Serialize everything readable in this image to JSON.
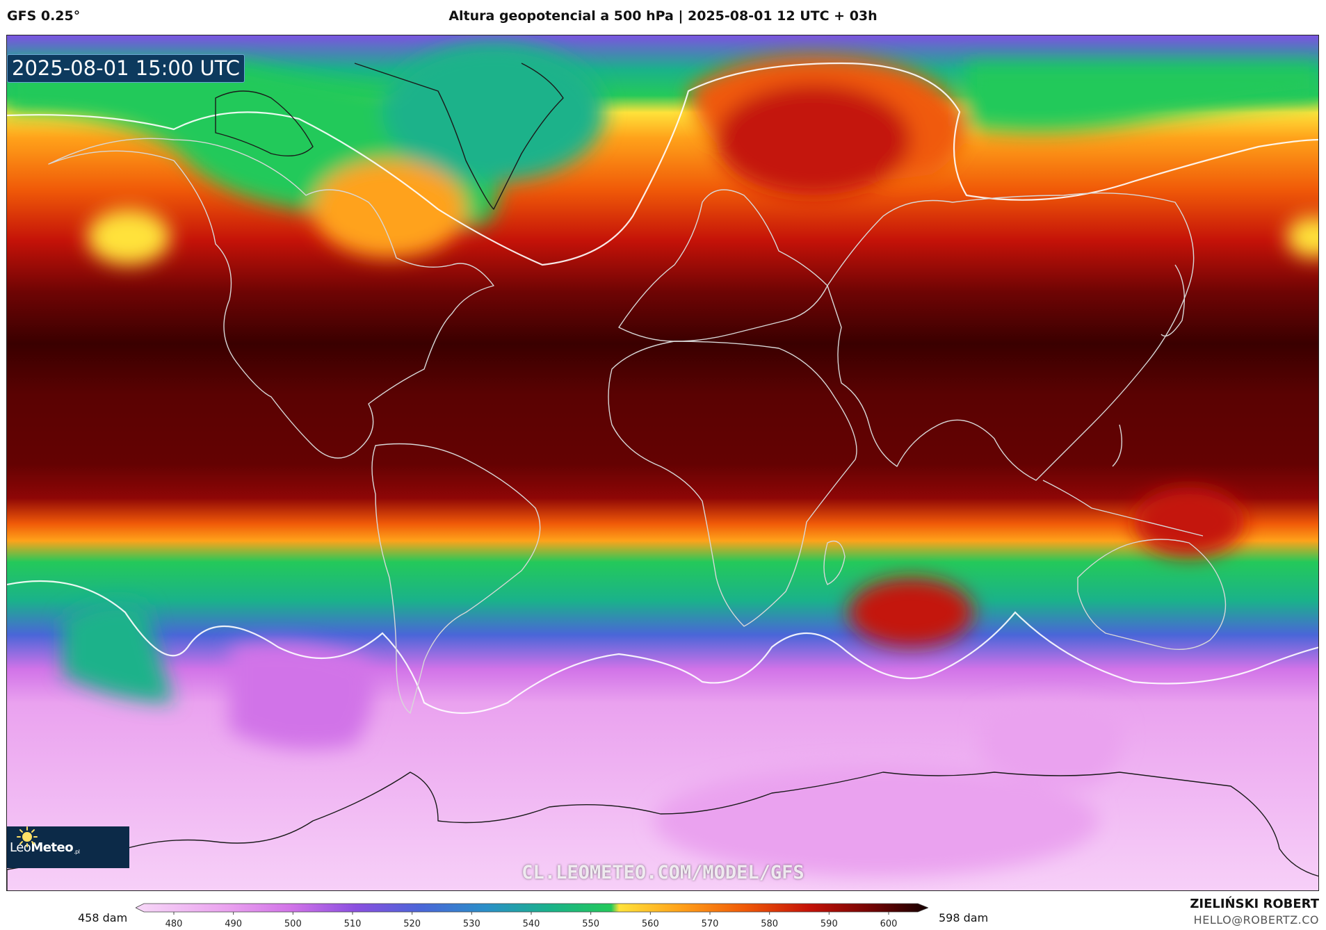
{
  "header": {
    "model": "GFS 0.25°",
    "title": "Altura geopotencial a 500 hPa | 2025-08-01 12 UTC + 03h"
  },
  "map": {
    "valid_time": "2025-08-01 15:00 UTC",
    "watermark": "CL.LEOMETEO.COM/MODEL/GFS",
    "logo": {
      "name_light": "Leo",
      "name_bold": "Meteo",
      "suffix": ".pl",
      "icon": "sun-icon"
    }
  },
  "colorbar": {
    "min_label": "458 dam",
    "max_label": "598 dam",
    "ticks": [
      "480",
      "490",
      "500",
      "510",
      "520",
      "530",
      "540",
      "550",
      "560",
      "570",
      "580",
      "590",
      "600"
    ],
    "colors": {
      "c480": "#f7d8f8",
      "c490": "#eaa2ef",
      "c500": "#d173e8",
      "c510": "#8a4fe0",
      "c520": "#4a66d8",
      "c530": "#2a8fc8",
      "c540": "#1ab28a",
      "c550": "#24c95a",
      "c555": "#ffe23a",
      "c560": "#ffa21a",
      "c570": "#f05a08",
      "c580": "#c41208",
      "c590": "#6e0404",
      "c600": "#140000"
    }
  },
  "credits": {
    "name": "ZIELIŃSKI ROBERT",
    "email": "HELLO@ROBERTZ.CO"
  }
}
